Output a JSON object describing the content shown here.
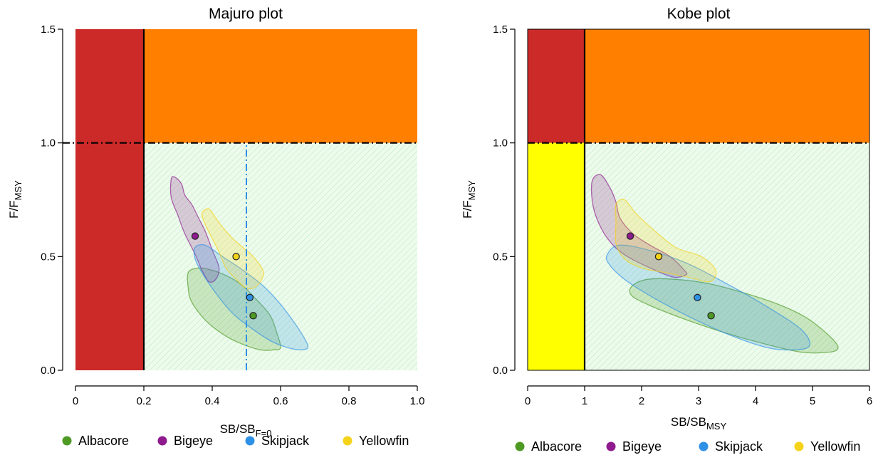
{
  "figure": {
    "colors": {
      "red_zone": "#CC2929",
      "orange_zone": "#FF8000",
      "yellow_zone": "#FFFF00",
      "green_zone": "#DDF7DD",
      "albacore": "#4E9A25",
      "bigeye": "#8E1A8E",
      "skipjack": "#2F91E6",
      "yellowfin": "#F5D31A"
    }
  },
  "chart_data": [
    {
      "type": "scatter",
      "title": "Majuro plot",
      "xlabel": "SB/SB",
      "xlabel_sub": "F=0",
      "ylabel": "F/F",
      "ylabel_sub": "MSY",
      "xlim": [
        0,
        1.0
      ],
      "ylim": [
        0,
        1.5
      ],
      "xticks": [
        "0",
        "0.2",
        "0.4",
        "0.6",
        "0.8",
        "1.0"
      ],
      "yticks": [
        "0.0",
        "0.5",
        "1.0",
        "1.5"
      ],
      "zones": [
        {
          "name": "red",
          "x": [
            0,
            0.2
          ],
          "y": [
            0,
            1.5
          ]
        },
        {
          "name": "orange",
          "x": [
            0.2,
            1.0
          ],
          "y": [
            1.0,
            1.5
          ]
        },
        {
          "name": "green",
          "x": [
            0.2,
            1.0
          ],
          "y": [
            0,
            1.0
          ]
        }
      ],
      "reference_lines": [
        {
          "orientation": "vertical",
          "value": 0.2,
          "style": "solid"
        },
        {
          "orientation": "horizontal",
          "value": 1.0,
          "style": "dashdot"
        },
        {
          "orientation": "vertical",
          "value": 0.5,
          "style": "dashdot",
          "color": "skipjack",
          "y_to": 1.0
        }
      ],
      "series": [
        {
          "name": "Albacore",
          "color": "albacore",
          "point": {
            "x": 0.52,
            "y": 0.24
          },
          "region": [
            [
              0.33,
              0.43
            ],
            [
              0.36,
              0.45
            ],
            [
              0.4,
              0.44
            ],
            [
              0.45,
              0.41
            ],
            [
              0.49,
              0.37
            ],
            [
              0.53,
              0.31
            ],
            [
              0.57,
              0.24
            ],
            [
              0.59,
              0.16
            ],
            [
              0.6,
              0.1
            ],
            [
              0.58,
              0.09
            ],
            [
              0.54,
              0.09
            ],
            [
              0.48,
              0.12
            ],
            [
              0.43,
              0.16
            ],
            [
              0.38,
              0.22
            ],
            [
              0.34,
              0.3
            ],
            [
              0.33,
              0.36
            ]
          ]
        },
        {
          "name": "Bigeye",
          "color": "bigeye",
          "point": {
            "x": 0.35,
            "y": 0.59
          },
          "region": [
            [
              0.28,
              0.84
            ],
            [
              0.29,
              0.85
            ],
            [
              0.31,
              0.82
            ],
            [
              0.32,
              0.77
            ],
            [
              0.34,
              0.73
            ],
            [
              0.36,
              0.67
            ],
            [
              0.38,
              0.61
            ],
            [
              0.4,
              0.53
            ],
            [
              0.42,
              0.45
            ],
            [
              0.41,
              0.4
            ],
            [
              0.39,
              0.39
            ],
            [
              0.37,
              0.44
            ],
            [
              0.35,
              0.51
            ],
            [
              0.32,
              0.6
            ],
            [
              0.3,
              0.68
            ],
            [
              0.28,
              0.76
            ]
          ]
        },
        {
          "name": "Skipjack",
          "color": "skipjack",
          "point": {
            "x": 0.51,
            "y": 0.32
          },
          "region": [
            [
              0.35,
              0.54
            ],
            [
              0.38,
              0.55
            ],
            [
              0.43,
              0.5
            ],
            [
              0.49,
              0.44
            ],
            [
              0.55,
              0.37
            ],
            [
              0.6,
              0.29
            ],
            [
              0.64,
              0.21
            ],
            [
              0.67,
              0.14
            ],
            [
              0.68,
              0.1
            ],
            [
              0.66,
              0.09
            ],
            [
              0.62,
              0.1
            ],
            [
              0.57,
              0.13
            ],
            [
              0.51,
              0.19
            ],
            [
              0.46,
              0.25
            ],
            [
              0.41,
              0.34
            ],
            [
              0.37,
              0.43
            ],
            [
              0.35,
              0.49
            ]
          ]
        },
        {
          "name": "Yellowfin",
          "color": "yellowfin",
          "point": {
            "x": 0.47,
            "y": 0.5
          },
          "region": [
            [
              0.37,
              0.69
            ],
            [
              0.39,
              0.71
            ],
            [
              0.41,
              0.67
            ],
            [
              0.43,
              0.63
            ],
            [
              0.46,
              0.58
            ],
            [
              0.49,
              0.54
            ],
            [
              0.52,
              0.5
            ],
            [
              0.55,
              0.43
            ],
            [
              0.53,
              0.37
            ],
            [
              0.5,
              0.36
            ],
            [
              0.47,
              0.4
            ],
            [
              0.44,
              0.45
            ],
            [
              0.42,
              0.52
            ],
            [
              0.4,
              0.58
            ],
            [
              0.38,
              0.64
            ]
          ]
        }
      ]
    },
    {
      "type": "scatter",
      "title": "Kobe plot",
      "xlabel": "SB/SB",
      "xlabel_sub": "MSY",
      "ylabel": "F/F",
      "ylabel_sub": "MSY",
      "xlim": [
        0,
        6
      ],
      "ylim": [
        0,
        1.5
      ],
      "xticks": [
        "0",
        "1",
        "2",
        "3",
        "4",
        "5",
        "6"
      ],
      "yticks": [
        "0.0",
        "0.5",
        "1.0",
        "1.5"
      ],
      "zones": [
        {
          "name": "red",
          "x": [
            0,
            1
          ],
          "y": [
            1.0,
            1.5
          ]
        },
        {
          "name": "orange",
          "x": [
            1,
            6
          ],
          "y": [
            1.0,
            1.5
          ]
        },
        {
          "name": "yellow",
          "x": [
            0,
            1
          ],
          "y": [
            0,
            1.0
          ]
        },
        {
          "name": "green",
          "x": [
            1,
            6
          ],
          "y": [
            0,
            1.0
          ]
        }
      ],
      "reference_lines": [
        {
          "orientation": "vertical",
          "value": 1,
          "style": "solid"
        },
        {
          "orientation": "horizontal",
          "value": 1.0,
          "style": "dashdot"
        }
      ],
      "series": [
        {
          "name": "Albacore",
          "color": "albacore",
          "point": {
            "x": 3.22,
            "y": 0.24
          },
          "region": [
            [
              1.83,
              0.37
            ],
            [
              2.1,
              0.4
            ],
            [
              2.6,
              0.4
            ],
            [
              3.2,
              0.38
            ],
            [
              3.8,
              0.34
            ],
            [
              4.4,
              0.29
            ],
            [
              4.9,
              0.23
            ],
            [
              5.3,
              0.15
            ],
            [
              5.45,
              0.1
            ],
            [
              5.3,
              0.08
            ],
            [
              4.8,
              0.08
            ],
            [
              4.1,
              0.12
            ],
            [
              3.4,
              0.17
            ],
            [
              2.7,
              0.23
            ],
            [
              2.1,
              0.29
            ],
            [
              1.82,
              0.33
            ]
          ]
        },
        {
          "name": "Bigeye",
          "color": "bigeye",
          "point": {
            "x": 1.8,
            "y": 0.59
          },
          "region": [
            [
              1.13,
              0.83
            ],
            [
              1.28,
              0.86
            ],
            [
              1.45,
              0.8
            ],
            [
              1.55,
              0.74
            ],
            [
              1.62,
              0.67
            ],
            [
              1.85,
              0.6
            ],
            [
              2.15,
              0.55
            ],
            [
              2.5,
              0.5
            ],
            [
              2.75,
              0.44
            ],
            [
              2.78,
              0.42
            ],
            [
              2.55,
              0.41
            ],
            [
              2.15,
              0.45
            ],
            [
              1.75,
              0.5
            ],
            [
              1.5,
              0.55
            ],
            [
              1.3,
              0.62
            ],
            [
              1.15,
              0.72
            ]
          ]
        },
        {
          "name": "Skipjack",
          "color": "skipjack",
          "point": {
            "x": 2.98,
            "y": 0.32
          },
          "region": [
            [
              1.4,
              0.51
            ],
            [
              1.6,
              0.55
            ],
            [
              2.1,
              0.53
            ],
            [
              2.8,
              0.47
            ],
            [
              3.5,
              0.38
            ],
            [
              4.2,
              0.28
            ],
            [
              4.8,
              0.18
            ],
            [
              4.95,
              0.11
            ],
            [
              4.7,
              0.09
            ],
            [
              4.2,
              0.1
            ],
            [
              3.5,
              0.16
            ],
            [
              2.8,
              0.24
            ],
            [
              2.2,
              0.32
            ],
            [
              1.7,
              0.4
            ],
            [
              1.42,
              0.47
            ]
          ]
        },
        {
          "name": "Yellowfin",
          "color": "yellowfin",
          "point": {
            "x": 2.3,
            "y": 0.5
          },
          "region": [
            [
              1.55,
              0.73
            ],
            [
              1.7,
              0.75
            ],
            [
              1.9,
              0.69
            ],
            [
              2.2,
              0.62
            ],
            [
              2.6,
              0.54
            ],
            [
              3.05,
              0.5
            ],
            [
              3.3,
              0.44
            ],
            [
              3.2,
              0.39
            ],
            [
              2.8,
              0.41
            ],
            [
              2.4,
              0.43
            ],
            [
              2.0,
              0.45
            ],
            [
              1.7,
              0.49
            ],
            [
              1.55,
              0.56
            ],
            [
              1.55,
              0.65
            ]
          ]
        }
      ]
    }
  ]
}
